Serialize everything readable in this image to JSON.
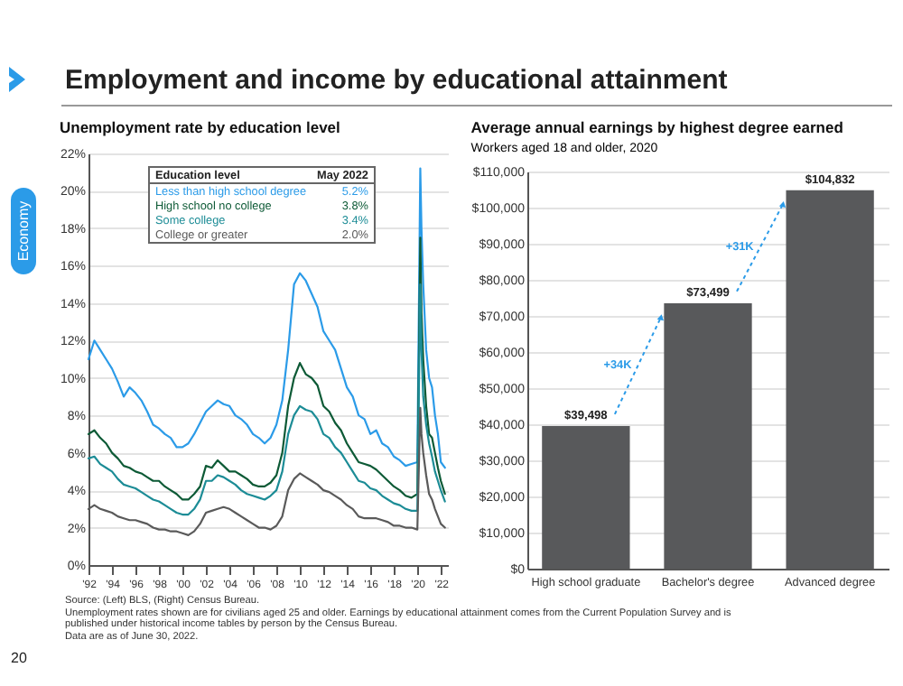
{
  "chart_data": [
    {
      "type": "line",
      "title": "Unemployment rate by education level",
      "legend_title": "Education level",
      "annotations": [
        "May 2022",
        "5.2%",
        "3.8%",
        "3.4%",
        "2.0%"
      ],
      "legend": "top left",
      "grid": "y",
      "xlim": [
        1992,
        2022.6
      ],
      "xticks": [
        {
          "value": 1992,
          "label": "'92"
        },
        {
          "value": 1994,
          "label": "'94"
        },
        {
          "value": 1996,
          "label": "'96"
        },
        {
          "value": 1998,
          "label": "'98"
        },
        {
          "value": 2000,
          "label": "'00"
        },
        {
          "value": 2002,
          "label": "'02"
        },
        {
          "value": 2004,
          "label": "'04"
        },
        {
          "value": 2006,
          "label": "'06"
        },
        {
          "value": 2008,
          "label": "'08"
        },
        {
          "value": 2010,
          "label": "'10"
        },
        {
          "value": 2012,
          "label": "'12"
        },
        {
          "value": 2014,
          "label": "'14"
        },
        {
          "value": 2016,
          "label": "'16"
        },
        {
          "value": 2018,
          "label": "'18"
        },
        {
          "value": 2020,
          "label": "'20"
        },
        {
          "value": 2022,
          "label": "'22"
        }
      ],
      "ylim": [
        0,
        22
      ],
      "yticks": [
        {
          "value": 0,
          "label": "0%"
        },
        {
          "value": 2,
          "label": "2%"
        },
        {
          "value": 4,
          "label": "4%"
        },
        {
          "value": 6,
          "label": "6%"
        },
        {
          "value": 8,
          "label": "8%"
        },
        {
          "value": 10,
          "label": "10%"
        },
        {
          "value": 12,
          "label": "12%"
        },
        {
          "value": 14,
          "label": "14%"
        },
        {
          "value": 16,
          "label": "16%"
        },
        {
          "value": 18,
          "label": "18%"
        },
        {
          "value": 20,
          "label": "20%"
        },
        {
          "value": 22,
          "label": "22%"
        }
      ],
      "x": [
        1992,
        1992.5,
        1993,
        1993.5,
        1994,
        1994.5,
        1995,
        1995.5,
        1996,
        1996.5,
        1997,
        1997.5,
        1998,
        1998.5,
        1999,
        1999.5,
        2000,
        2000.5,
        2001,
        2001.5,
        2002,
        2002.5,
        2003,
        2003.5,
        2004,
        2004.5,
        2005,
        2005.5,
        2006,
        2006.5,
        2007,
        2007.5,
        2008,
        2008.5,
        2009,
        2009.5,
        2010,
        2010.5,
        2011,
        2011.5,
        2012,
        2012.5,
        2013,
        2013.5,
        2014,
        2014.5,
        2015,
        2015.5,
        2016,
        2016.5,
        2017,
        2017.5,
        2018,
        2018.5,
        2019,
        2019.5,
        2020,
        2020.25,
        2020.35,
        2020.5,
        2020.75,
        2021,
        2021.25,
        2021.5,
        2021.75,
        2022,
        2022.35
      ],
      "series": [
        {
          "name": "Less than high school degree",
          "color": "#2b9be8",
          "values": [
            11.0,
            12.0,
            11.5,
            11.0,
            10.5,
            9.8,
            9.0,
            9.5,
            9.2,
            8.8,
            8.2,
            7.5,
            7.3,
            7.0,
            6.8,
            6.3,
            6.3,
            6.5,
            7.0,
            7.6,
            8.2,
            8.5,
            8.8,
            8.6,
            8.5,
            8.0,
            7.8,
            7.5,
            7.0,
            6.8,
            6.5,
            6.8,
            7.5,
            8.8,
            11.5,
            15.0,
            15.6,
            15.2,
            14.5,
            13.8,
            12.5,
            12.0,
            11.5,
            10.5,
            9.5,
            9.0,
            8.0,
            7.8,
            7.0,
            7.2,
            6.5,
            6.3,
            5.8,
            5.6,
            5.3,
            5.4,
            5.5,
            21.2,
            18.0,
            15.0,
            11.5,
            10.0,
            9.5,
            8.0,
            7.0,
            5.5,
            5.2
          ]
        },
        {
          "name": "High school no college",
          "color": "#0d5a36",
          "values": [
            7.0,
            7.2,
            6.8,
            6.5,
            6.0,
            5.7,
            5.3,
            5.2,
            5.0,
            4.9,
            4.7,
            4.5,
            4.5,
            4.2,
            4.0,
            3.8,
            3.5,
            3.5,
            3.8,
            4.2,
            5.3,
            5.2,
            5.6,
            5.3,
            5.0,
            5.0,
            4.8,
            4.6,
            4.3,
            4.2,
            4.2,
            4.4,
            4.8,
            6.0,
            8.5,
            10.0,
            10.8,
            10.2,
            10.0,
            9.6,
            8.5,
            8.2,
            7.6,
            7.2,
            6.5,
            6.0,
            5.5,
            5.4,
            5.3,
            5.1,
            4.8,
            4.5,
            4.2,
            4.0,
            3.7,
            3.6,
            3.8,
            17.5,
            13.5,
            11.0,
            8.5,
            7.0,
            6.8,
            6.0,
            5.2,
            4.5,
            3.8
          ]
        },
        {
          "name": "Some college",
          "color": "#1c8c96",
          "values": [
            5.7,
            5.8,
            5.4,
            5.2,
            5.0,
            4.6,
            4.3,
            4.2,
            4.1,
            3.9,
            3.7,
            3.5,
            3.4,
            3.2,
            3.0,
            2.8,
            2.7,
            2.7,
            3.0,
            3.5,
            4.5,
            4.5,
            4.8,
            4.7,
            4.5,
            4.3,
            4.0,
            3.8,
            3.7,
            3.6,
            3.5,
            3.7,
            4.0,
            5.0,
            7.0,
            8.0,
            8.5,
            8.3,
            8.2,
            7.8,
            7.0,
            6.8,
            6.3,
            6.0,
            5.5,
            5.0,
            4.5,
            4.4,
            4.1,
            4.0,
            3.7,
            3.5,
            3.3,
            3.2,
            3.0,
            2.9,
            2.9,
            15.0,
            11.5,
            9.0,
            7.5,
            6.5,
            5.8,
            5.0,
            4.5,
            4.0,
            3.4
          ]
        },
        {
          "name": "College or greater",
          "color": "#5a5a5a",
          "values": [
            3.0,
            3.2,
            3.0,
            2.9,
            2.8,
            2.6,
            2.5,
            2.4,
            2.4,
            2.3,
            2.2,
            2.0,
            1.9,
            1.9,
            1.8,
            1.8,
            1.7,
            1.6,
            1.8,
            2.2,
            2.8,
            2.9,
            3.0,
            3.1,
            3.0,
            2.8,
            2.6,
            2.4,
            2.2,
            2.0,
            2.0,
            1.9,
            2.1,
            2.6,
            4.0,
            4.6,
            4.9,
            4.7,
            4.5,
            4.3,
            4.0,
            3.9,
            3.7,
            3.5,
            3.2,
            3.0,
            2.6,
            2.5,
            2.5,
            2.5,
            2.4,
            2.3,
            2.1,
            2.1,
            2.0,
            2.0,
            1.9,
            8.4,
            7.0,
            6.0,
            4.8,
            3.8,
            3.5,
            3.0,
            2.6,
            2.2,
            2.0
          ]
        }
      ]
    },
    {
      "type": "bar",
      "title": "Average annual earnings by highest degree earned",
      "subtitle": "Workers aged 18 and older, 2020",
      "grid": "y",
      "categories": [
        "High school graduate",
        "Bachelor's degree",
        "Advanced degree"
      ],
      "values": [
        39498,
        73499,
        104832
      ],
      "color": "#58595b",
      "value_labels": [
        "$39,498",
        "$73,499",
        "$104,832"
      ],
      "annotations": [
        "+34K",
        "+31K"
      ],
      "ylim": [
        0,
        110000
      ],
      "yticks": [
        {
          "value": 0,
          "label": "$0"
        },
        {
          "value": 10000,
          "label": "$10,000"
        },
        {
          "value": 20000,
          "label": "$20,000"
        },
        {
          "value": 30000,
          "label": "$30,000"
        },
        {
          "value": 40000,
          "label": "$40,000"
        },
        {
          "value": 50000,
          "label": "$50,000"
        },
        {
          "value": 60000,
          "label": "$60,000"
        },
        {
          "value": 70000,
          "label": "$70,000"
        },
        {
          "value": 80000,
          "label": "$80,000"
        },
        {
          "value": 90000,
          "label": "$90,000"
        },
        {
          "value": 100000,
          "label": "$100,000"
        },
        {
          "value": 110000,
          "label": "$110,000"
        }
      ]
    },
    {
      "type": "other",
      "title": "Employment and income by educational attainment",
      "annotations": [
        "Economy",
        "Source: (Left) BLS, (Right) Census Bureau.",
        "Unemployment rates shown are for civilians aged 25 and older. Earnings by educational attainment comes from the Current Population Survey and is published under historical income tables by person by the Census Bureau.",
        "Data are as of June 30, 2022.",
        "20"
      ]
    }
  ]
}
